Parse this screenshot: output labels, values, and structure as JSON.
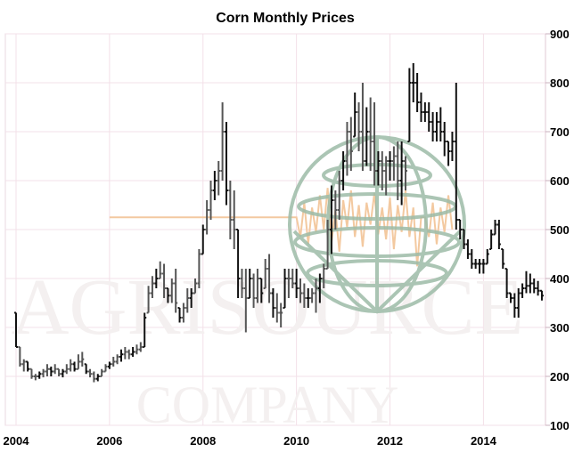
{
  "chart_data": {
    "type": "ohlc",
    "title": "Corn Monthly Prices",
    "xlabel": "",
    "ylabel": "",
    "ylim": [
      100,
      900
    ],
    "y_ticks": [
      100,
      200,
      300,
      400,
      500,
      600,
      700,
      800,
      900
    ],
    "y_axis_side": "right",
    "x_ticks": [
      "2004",
      "2006",
      "2008",
      "2010",
      "2012",
      "2014"
    ],
    "x_start": "2004-01",
    "frequency": "monthly",
    "grid": true,
    "watermark_logo_text": [
      "AGRISOURCE",
      "COMPANY"
    ],
    "bars_high_low_close": [
      [
        330,
        260,
        260
      ],
      [
        260,
        220,
        225
      ],
      [
        235,
        210,
        230
      ],
      [
        230,
        210,
        215
      ],
      [
        215,
        195,
        200
      ],
      [
        205,
        192,
        200
      ],
      [
        210,
        195,
        205
      ],
      [
        215,
        198,
        210
      ],
      [
        225,
        200,
        215
      ],
      [
        220,
        200,
        210
      ],
      [
        225,
        205,
        215
      ],
      [
        215,
        200,
        205
      ],
      [
        215,
        198,
        210
      ],
      [
        225,
        205,
        215
      ],
      [
        235,
        210,
        225
      ],
      [
        230,
        210,
        215
      ],
      [
        245,
        215,
        230
      ],
      [
        250,
        220,
        235
      ],
      [
        225,
        205,
        210
      ],
      [
        215,
        198,
        205
      ],
      [
        210,
        188,
        195
      ],
      [
        205,
        190,
        200
      ],
      [
        215,
        200,
        210
      ],
      [
        225,
        210,
        220
      ],
      [
        230,
        215,
        225
      ],
      [
        240,
        220,
        230
      ],
      [
        245,
        225,
        240
      ],
      [
        255,
        230,
        245
      ],
      [
        260,
        235,
        250
      ],
      [
        255,
        235,
        245
      ],
      [
        260,
        240,
        250
      ],
      [
        265,
        245,
        255
      ],
      [
        270,
        250,
        260
      ],
      [
        330,
        260,
        320
      ],
      [
        385,
        330,
        370
      ],
      [
        405,
        360,
        390
      ],
      [
        420,
        380,
        400
      ],
      [
        435,
        400,
        410
      ],
      [
        430,
        360,
        380
      ],
      [
        380,
        350,
        365
      ],
      [
        400,
        350,
        390
      ],
      [
        420,
        330,
        350
      ],
      [
        340,
        310,
        320
      ],
      [
        350,
        310,
        340
      ],
      [
        380,
        330,
        360
      ],
      [
        380,
        340,
        370
      ],
      [
        400,
        370,
        390
      ],
      [
        460,
        380,
        450
      ],
      [
        510,
        450,
        500
      ],
      [
        560,
        490,
        540
      ],
      [
        600,
        520,
        580
      ],
      [
        620,
        560,
        600
      ],
      [
        640,
        570,
        620
      ],
      [
        760,
        600,
        700
      ],
      [
        720,
        550,
        580
      ],
      [
        600,
        480,
        520
      ],
      [
        580,
        460,
        500
      ],
      [
        500,
        360,
        400
      ],
      [
        420,
        360,
        380
      ],
      [
        420,
        290,
        360
      ],
      [
        420,
        360,
        400
      ],
      [
        410,
        340,
        360
      ],
      [
        420,
        350,
        400
      ],
      [
        400,
        350,
        370
      ],
      [
        440,
        380,
        420
      ],
      [
        450,
        350,
        370
      ],
      [
        380,
        320,
        340
      ],
      [
        370,
        310,
        330
      ],
      [
        350,
        300,
        330
      ],
      [
        420,
        340,
        400
      ],
      [
        420,
        360,
        400
      ],
      [
        420,
        380,
        390
      ],
      [
        420,
        360,
        380
      ],
      [
        400,
        350,
        370
      ],
      [
        390,
        340,
        360
      ],
      [
        380,
        340,
        360
      ],
      [
        380,
        350,
        370
      ],
      [
        400,
        330,
        380
      ],
      [
        410,
        350,
        400
      ],
      [
        430,
        380,
        420
      ],
      [
        520,
        420,
        500
      ],
      [
        590,
        450,
        560
      ],
      [
        580,
        500,
        540
      ],
      [
        620,
        520,
        600
      ],
      [
        660,
        580,
        640
      ],
      [
        720,
        610,
        700
      ],
      [
        730,
        620,
        660
      ],
      [
        780,
        690,
        740
      ],
      [
        760,
        660,
        700
      ],
      [
        800,
        620,
        640
      ],
      [
        750,
        630,
        700
      ],
      [
        770,
        620,
        680
      ],
      [
        760,
        590,
        620
      ],
      [
        660,
        590,
        640
      ],
      [
        660,
        580,
        620
      ],
      [
        650,
        570,
        640
      ],
      [
        660,
        600,
        640
      ],
      [
        670,
        600,
        650
      ],
      [
        680,
        560,
        600
      ],
      [
        680,
        550,
        640
      ],
      [
        650,
        580,
        620
      ],
      [
        830,
        680,
        800
      ],
      [
        840,
        760,
        800
      ],
      [
        820,
        740,
        760
      ],
      [
        780,
        720,
        740
      ],
      [
        760,
        720,
        740
      ],
      [
        760,
        700,
        720
      ],
      [
        740,
        680,
        700
      ],
      [
        740,
        680,
        720
      ],
      [
        750,
        680,
        700
      ],
      [
        720,
        650,
        680
      ],
      [
        680,
        630,
        660
      ],
      [
        700,
        640,
        680
      ],
      [
        800,
        500,
        520
      ],
      [
        520,
        480,
        500
      ],
      [
        500,
        460,
        470
      ],
      [
        480,
        440,
        450
      ],
      [
        460,
        420,
        430
      ],
      [
        440,
        420,
        430
      ],
      [
        440,
        410,
        430
      ],
      [
        440,
        410,
        430
      ],
      [
        460,
        430,
        450
      ],
      [
        500,
        460,
        490
      ],
      [
        520,
        490,
        510
      ],
      [
        520,
        460,
        470
      ],
      [
        460,
        420,
        430
      ],
      [
        420,
        360,
        370
      ],
      [
        370,
        350,
        360
      ],
      [
        370,
        320,
        340
      ],
      [
        380,
        320,
        370
      ],
      [
        390,
        360,
        380
      ],
      [
        415,
        370,
        385
      ],
      [
        410,
        370,
        390
      ],
      [
        400,
        370,
        380
      ],
      [
        395,
        365,
        375
      ],
      [
        375,
        355,
        365
      ]
    ],
    "watermark_line": {
      "start": "2006-01",
      "level": 525,
      "zigzag_from": "2010-01",
      "zigzag_to": "2013-05"
    }
  }
}
